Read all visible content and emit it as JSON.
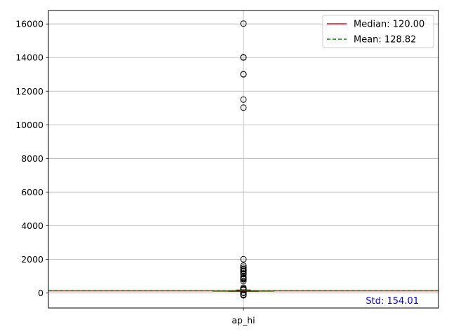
{
  "chart_data": {
    "type": "box",
    "title": "",
    "xlabel": "",
    "ylabel": "",
    "categories": [
      "ap_hi"
    ],
    "ylim": [
      -900,
      16800
    ],
    "yticks": [
      0,
      2000,
      4000,
      6000,
      8000,
      10000,
      12000,
      14000,
      16000
    ],
    "grid": true,
    "legend_position": "top-right",
    "box": {
      "q1": 120,
      "median": 120,
      "q3": 140,
      "whisker_low": 90,
      "whisker_high": 170
    },
    "outliers": [
      16020,
      14020,
      14000,
      13010,
      13000,
      11500,
      11020,
      2000,
      1620,
      1500,
      1420,
      1400,
      1320,
      1300,
      1200,
      1130,
      1110,
      960,
      906,
      850,
      806,
      701,
      309,
      240,
      220,
      210,
      200,
      190,
      185,
      180,
      20,
      16,
      14,
      13,
      11,
      10,
      7,
      1,
      -100,
      -115,
      -120,
      -140,
      -150
    ],
    "lines": [
      {
        "name": "Median: 120.00",
        "value": 120.0,
        "color": "#ff0000",
        "style": "solid"
      },
      {
        "name": "Mean: 128.82",
        "value": 128.82,
        "color": "#008000",
        "style": "dashed"
      }
    ],
    "annotations": [
      {
        "text": "Std: 154.01",
        "color": "#0000ff",
        "position": "bottom-right"
      }
    ],
    "colors": {
      "box": "#000000",
      "median_line": "#2ca02c",
      "grid": "#b0b0b0"
    }
  }
}
